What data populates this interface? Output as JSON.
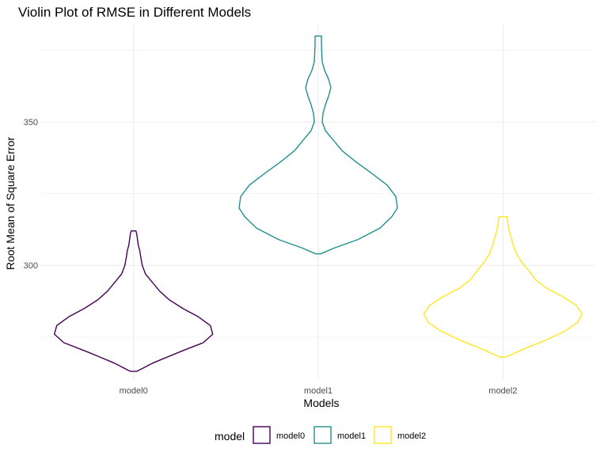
{
  "chart_data": {
    "type": "violin",
    "title": "Violin Plot of RMSE in Different Models",
    "xlabel": "Models",
    "ylabel": "Root Mean of Square Error",
    "ylim": [
      260,
      384
    ],
    "yticks": [
      300,
      350
    ],
    "grid": true,
    "legend": {
      "title": "model",
      "position": "bottom",
      "entries": [
        "model0",
        "model1",
        "model2"
      ]
    },
    "categories": [
      "model0",
      "model1",
      "model2"
    ],
    "series": [
      {
        "name": "model0",
        "color": "#440154",
        "y_min": 263,
        "y_max": 312,
        "profile": [
          [
            263,
            0.04
          ],
          [
            266,
            0.25
          ],
          [
            270,
            0.6
          ],
          [
            273,
            0.88
          ],
          [
            276,
            1.0
          ],
          [
            279,
            0.97
          ],
          [
            282,
            0.82
          ],
          [
            285,
            0.62
          ],
          [
            288,
            0.45
          ],
          [
            291,
            0.33
          ],
          [
            294,
            0.24
          ],
          [
            297,
            0.15
          ],
          [
            300,
            0.11
          ],
          [
            303,
            0.09
          ],
          [
            305,
            0.08
          ],
          [
            307,
            0.06
          ],
          [
            309,
            0.05
          ],
          [
            311,
            0.04
          ],
          [
            312,
            0.03
          ]
        ]
      },
      {
        "name": "model1",
        "color": "#21908C",
        "y_min": 304,
        "y_max": 380,
        "profile": [
          [
            304,
            0.03
          ],
          [
            306,
            0.2
          ],
          [
            309,
            0.5
          ],
          [
            313,
            0.78
          ],
          [
            317,
            0.93
          ],
          [
            320,
            1.0
          ],
          [
            324,
            0.98
          ],
          [
            328,
            0.87
          ],
          [
            332,
            0.68
          ],
          [
            336,
            0.48
          ],
          [
            340,
            0.3
          ],
          [
            344,
            0.18
          ],
          [
            347,
            0.09
          ],
          [
            350,
            0.05
          ],
          [
            353,
            0.06
          ],
          [
            356,
            0.09
          ],
          [
            359,
            0.13
          ],
          [
            362,
            0.16
          ],
          [
            365,
            0.13
          ],
          [
            368,
            0.08
          ],
          [
            371,
            0.05
          ],
          [
            374,
            0.045
          ],
          [
            377,
            0.04
          ],
          [
            380,
            0.04
          ]
        ]
      },
      {
        "name": "model2",
        "color": "#FDE725",
        "y_min": 268,
        "y_max": 317,
        "profile": [
          [
            268,
            0.04
          ],
          [
            271,
            0.28
          ],
          [
            274,
            0.55
          ],
          [
            277,
            0.78
          ],
          [
            280,
            0.94
          ],
          [
            283,
            1.0
          ],
          [
            286,
            0.93
          ],
          [
            289,
            0.76
          ],
          [
            292,
            0.55
          ],
          [
            295,
            0.41
          ],
          [
            298,
            0.33
          ],
          [
            301,
            0.24
          ],
          [
            304,
            0.17
          ],
          [
            307,
            0.13
          ],
          [
            310,
            0.1
          ],
          [
            313,
            0.07
          ],
          [
            315,
            0.06
          ],
          [
            317,
            0.05
          ]
        ]
      }
    ]
  }
}
